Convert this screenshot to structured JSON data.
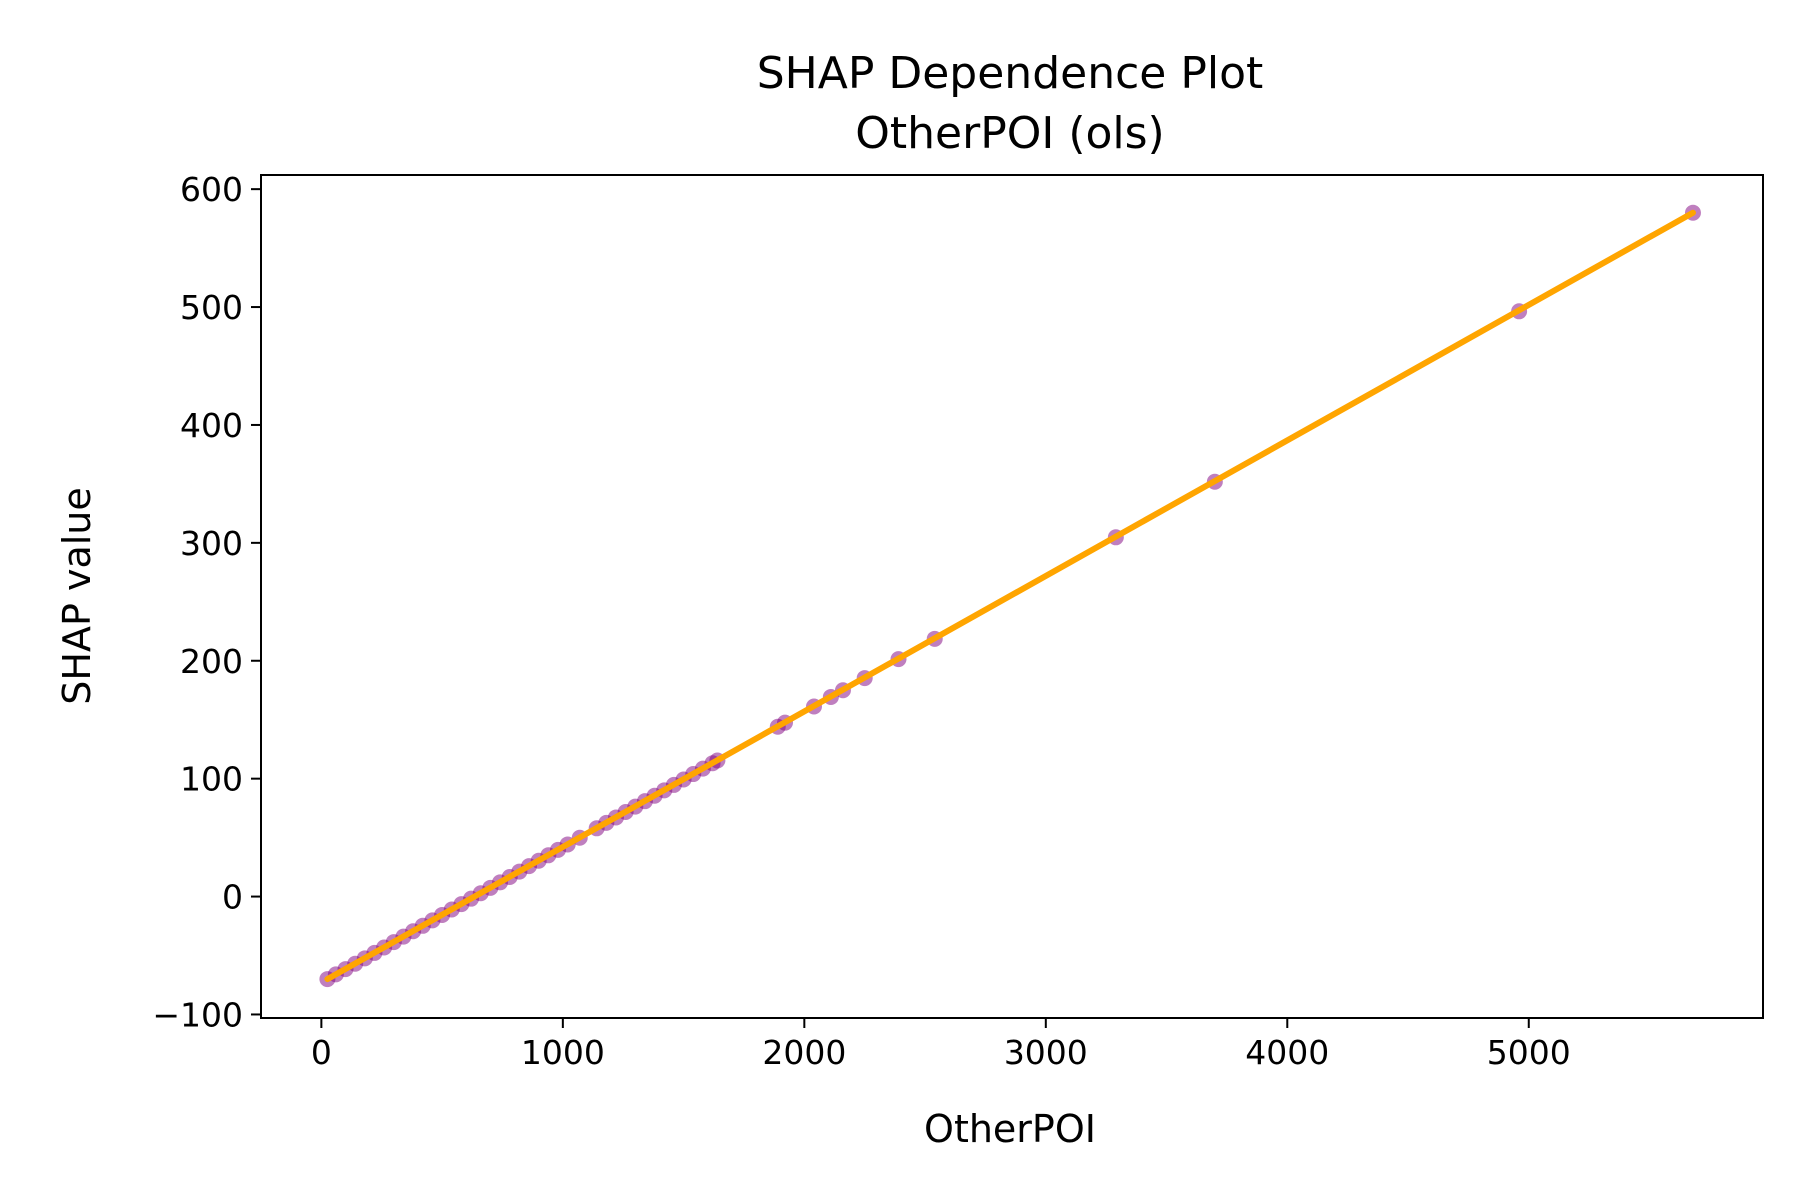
{
  "chart_data": {
    "type": "scatter",
    "title": "SHAP Dependence Plot",
    "subtitle": "OtherPOI (ols)",
    "xlabel": "OtherPOI",
    "ylabel": "SHAP value",
    "xlim": [
      -250,
      5970
    ],
    "ylim": [
      -103,
      612
    ],
    "x_ticks": [
      0,
      1000,
      2000,
      3000,
      4000,
      5000
    ],
    "x_tick_labels": [
      "0",
      "1000",
      "2000",
      "3000",
      "4000",
      "5000"
    ],
    "y_ticks": [
      -100,
      0,
      100,
      200,
      300,
      400,
      500,
      600
    ],
    "y_tick_labels": [
      "−100",
      "0",
      "100",
      "200",
      "300",
      "400",
      "500",
      "600"
    ],
    "grid": false,
    "colors": {
      "points": "#800080",
      "trend": "#FFA500"
    },
    "trend_line": {
      "x": [
        25,
        5680
      ],
      "y": [
        -70,
        580
      ]
    },
    "series": [
      {
        "values": [
          [
            25,
            -70
          ],
          [
            60,
            -66
          ],
          [
            100,
            -61.5
          ],
          [
            140,
            -57
          ],
          [
            180,
            -52.4
          ],
          [
            220,
            -47.8
          ],
          [
            260,
            -43.2
          ],
          [
            300,
            -38.6
          ],
          [
            340,
            -34
          ],
          [
            380,
            -29.4
          ],
          [
            420,
            -24.8
          ],
          [
            460,
            -20.2
          ],
          [
            500,
            -15.6
          ],
          [
            540,
            -11
          ],
          [
            580,
            -6.4
          ],
          [
            620,
            -1.8
          ],
          [
            660,
            2.8
          ],
          [
            700,
            7.4
          ],
          [
            740,
            12
          ],
          [
            780,
            16.6
          ],
          [
            820,
            21.2
          ],
          [
            860,
            25.8
          ],
          [
            900,
            30.4
          ],
          [
            940,
            35
          ],
          [
            980,
            39.6
          ],
          [
            1020,
            44.2
          ],
          [
            1070,
            49.9
          ],
          [
            1140,
            57.9
          ],
          [
            1180,
            62.5
          ],
          [
            1220,
            67.1
          ],
          [
            1260,
            71.7
          ],
          [
            1300,
            76.3
          ],
          [
            1340,
            80.9
          ],
          [
            1380,
            85.5
          ],
          [
            1420,
            90.1
          ],
          [
            1460,
            94.7
          ],
          [
            1500,
            99.3
          ],
          [
            1540,
            103.9
          ],
          [
            1580,
            108.5
          ],
          [
            1620,
            113.1
          ],
          [
            1640,
            115.4
          ],
          [
            1890,
            144
          ],
          [
            1920,
            147.5
          ],
          [
            2040,
            161.2
          ],
          [
            2110,
            169.3
          ],
          [
            2160,
            175
          ],
          [
            2250,
            185.3
          ],
          [
            2390,
            201.4
          ],
          [
            2540,
            218.6
          ],
          [
            3290,
            304.7
          ],
          [
            3700,
            351.8
          ],
          [
            4960,
            496.4
          ],
          [
            5680,
            580
          ]
        ]
      }
    ]
  }
}
